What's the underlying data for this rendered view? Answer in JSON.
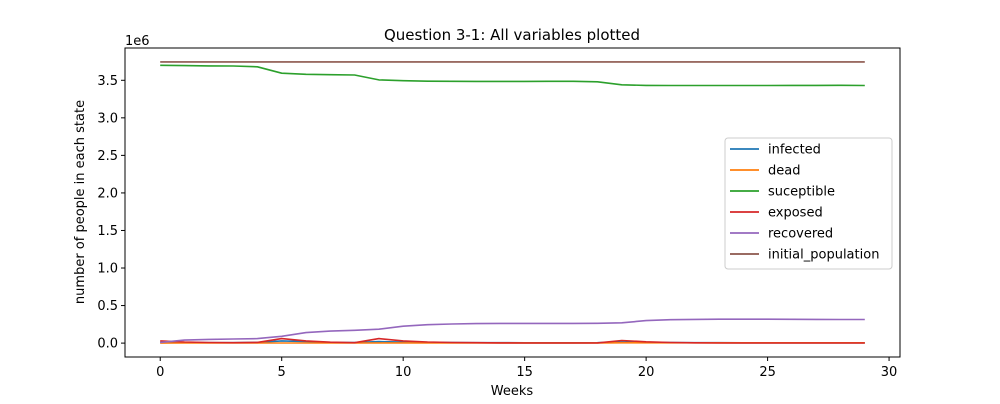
{
  "chart_data": {
    "type": "line",
    "title": "Question 3-1: All variables plotted",
    "xlabel": "Weeks",
    "ylabel": "number of people in each state",
    "y_offset_label": "1e6",
    "xlim": [
      -1.45,
      30.45
    ],
    "ylim": [
      -0.185,
      3.93
    ],
    "xticks": [
      0,
      5,
      10,
      15,
      20,
      25,
      30
    ],
    "xtick_labels": [
      "0",
      "5",
      "10",
      "15",
      "20",
      "25",
      "30"
    ],
    "yticks": [
      0.0,
      0.5,
      1.0,
      1.5,
      2.0,
      2.5,
      3.0,
      3.5
    ],
    "ytick_labels": [
      "0.0",
      "0.5",
      "1.0",
      "1.5",
      "2.0",
      "2.5",
      "3.0",
      "3.5"
    ],
    "grid": false,
    "legend_position": "center-right",
    "x": [
      0,
      1,
      2,
      3,
      4,
      5,
      6,
      7,
      8,
      9,
      10,
      11,
      12,
      13,
      14,
      15,
      16,
      17,
      18,
      19,
      20,
      21,
      22,
      23,
      24,
      25,
      26,
      27,
      28,
      29
    ],
    "series": [
      {
        "name": "infected",
        "color": "#1f77b4",
        "values": [
          0.01,
          0.008,
          0.006,
          0.005,
          0.01,
          0.03,
          0.02,
          0.01,
          0.008,
          0.02,
          0.015,
          0.01,
          0.008,
          0.006,
          0.005,
          0.004,
          0.004,
          0.004,
          0.005,
          0.015,
          0.01,
          0.008,
          0.006,
          0.005,
          0.004,
          0.004,
          0.004,
          0.004,
          0.004,
          0.004
        ]
      },
      {
        "name": "dead",
        "color": "#ff7f0e",
        "values": [
          0.0,
          0.001,
          0.001,
          0.001,
          0.001,
          0.002,
          0.002,
          0.002,
          0.002,
          0.003,
          0.003,
          0.003,
          0.003,
          0.003,
          0.003,
          0.003,
          0.003,
          0.003,
          0.003,
          0.004,
          0.004,
          0.004,
          0.004,
          0.004,
          0.004,
          0.004,
          0.004,
          0.004,
          0.004,
          0.004
        ]
      },
      {
        "name": "suceptible",
        "color": "#2ca02c",
        "values": [
          3.7,
          3.695,
          3.692,
          3.69,
          3.68,
          3.595,
          3.58,
          3.575,
          3.57,
          3.505,
          3.495,
          3.488,
          3.486,
          3.485,
          3.485,
          3.485,
          3.486,
          3.486,
          3.48,
          3.44,
          3.432,
          3.43,
          3.43,
          3.43,
          3.43,
          3.431,
          3.432,
          3.432,
          3.433,
          3.43
        ]
      },
      {
        "name": "exposed",
        "color": "#d62728",
        "values": [
          0.03,
          0.015,
          0.008,
          0.005,
          0.01,
          0.06,
          0.03,
          0.012,
          0.005,
          0.06,
          0.03,
          0.015,
          0.008,
          0.005,
          0.003,
          0.002,
          0.002,
          0.002,
          0.003,
          0.035,
          0.018,
          0.008,
          0.004,
          0.002,
          0.002,
          0.002,
          0.002,
          0.002,
          0.002,
          0.002
        ]
      },
      {
        "name": "recovered",
        "color": "#9467bd",
        "values": [
          0.01,
          0.04,
          0.05,
          0.055,
          0.06,
          0.09,
          0.14,
          0.16,
          0.17,
          0.185,
          0.225,
          0.245,
          0.255,
          0.26,
          0.262,
          0.263,
          0.263,
          0.263,
          0.264,
          0.27,
          0.3,
          0.312,
          0.316,
          0.318,
          0.318,
          0.318,
          0.317,
          0.316,
          0.315,
          0.315
        ]
      },
      {
        "name": "initial_population",
        "color": "#8c564b",
        "values": [
          3.745,
          3.745,
          3.745,
          3.745,
          3.745,
          3.745,
          3.745,
          3.745,
          3.745,
          3.745,
          3.745,
          3.745,
          3.745,
          3.745,
          3.745,
          3.745,
          3.745,
          3.745,
          3.745,
          3.745,
          3.745,
          3.745,
          3.745,
          3.745,
          3.745,
          3.745,
          3.745,
          3.745,
          3.745,
          3.745
        ]
      }
    ]
  }
}
